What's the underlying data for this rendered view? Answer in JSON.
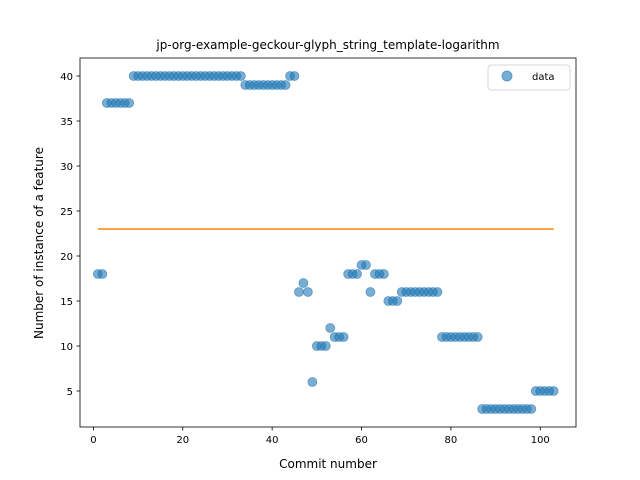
{
  "chart_data": {
    "type": "scatter",
    "title": "jp-org-example-geckour-glyph_string_template-logarithm",
    "xlabel": "Commit number",
    "ylabel": "Number of instance of a feature",
    "xlim": [
      -3,
      108
    ],
    "ylim": [
      1,
      42
    ],
    "xticks": [
      0,
      20,
      40,
      60,
      80,
      100
    ],
    "yticks": [
      5,
      10,
      15,
      20,
      25,
      30,
      35,
      40
    ],
    "legend": {
      "placement": "top-right",
      "label": "data"
    },
    "colors": {
      "points": "#1f77b4",
      "line": "#ff7f0e"
    },
    "series": [
      {
        "name": "data",
        "x": [
          1,
          2,
          3,
          4,
          5,
          6,
          7,
          8,
          9,
          10,
          11,
          12,
          13,
          14,
          15,
          16,
          17,
          18,
          19,
          20,
          21,
          22,
          23,
          24,
          25,
          26,
          27,
          28,
          29,
          30,
          31,
          32,
          33,
          34,
          35,
          36,
          37,
          38,
          39,
          40,
          41,
          42,
          43,
          44,
          45,
          46,
          47,
          48,
          49,
          50,
          51,
          52,
          53,
          54,
          55,
          56,
          57,
          58,
          59,
          60,
          61,
          62,
          63,
          64,
          65,
          66,
          67,
          68,
          69,
          70,
          71,
          72,
          73,
          74,
          75,
          76,
          77,
          78,
          79,
          80,
          81,
          82,
          83,
          84,
          85,
          86,
          87,
          88,
          89,
          90,
          91,
          92,
          93,
          94,
          95,
          96,
          97,
          98,
          99,
          100,
          101,
          102,
          103
        ],
        "y": [
          18,
          18,
          37,
          37,
          37,
          37,
          37,
          37,
          40,
          40,
          40,
          40,
          40,
          40,
          40,
          40,
          40,
          40,
          40,
          40,
          40,
          40,
          40,
          40,
          40,
          40,
          40,
          40,
          40,
          40,
          40,
          40,
          40,
          39,
          39,
          39,
          39,
          39,
          39,
          39,
          39,
          39,
          39,
          40,
          40,
          16,
          17,
          16,
          6,
          10,
          10,
          10,
          12,
          11,
          11,
          11,
          18,
          18,
          18,
          19,
          19,
          16,
          18,
          18,
          18,
          15,
          15,
          15,
          16,
          16,
          16,
          16,
          16,
          16,
          16,
          16,
          16,
          11,
          11,
          11,
          11,
          11,
          11,
          11,
          11,
          11,
          3,
          3,
          3,
          3,
          3,
          3,
          3,
          3,
          3,
          3,
          3,
          3,
          5,
          5,
          5,
          5,
          5
        ]
      }
    ],
    "line": {
      "x": [
        1,
        103
      ],
      "y": [
        23,
        23
      ]
    }
  }
}
